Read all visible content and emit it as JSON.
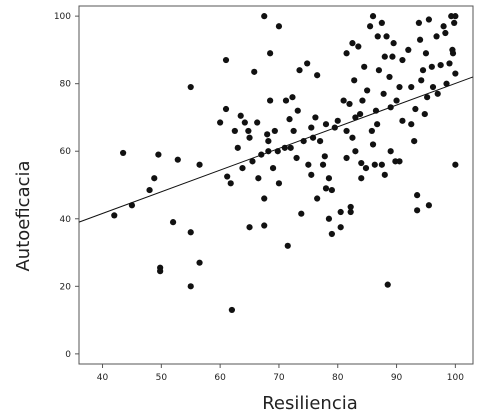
{
  "chart_data": {
    "type": "scatter",
    "xlabel": "Resiliencia",
    "ylabel": "Autoeficacia",
    "xlim": [
      36,
      103
    ],
    "ylim": [
      -3,
      103
    ],
    "xticks": [
      40,
      50,
      60,
      70,
      80,
      90,
      100
    ],
    "yticks": [
      0,
      20,
      40,
      60,
      80,
      100
    ],
    "grid": false,
    "fit_line": {
      "kind": "linear",
      "x": [
        36,
        103
      ],
      "y": [
        39,
        82
      ]
    },
    "points": [
      {
        "x": 42,
        "y": 41
      },
      {
        "x": 43.5,
        "y": 59.5
      },
      {
        "x": 45,
        "y": 44
      },
      {
        "x": 48,
        "y": 48.5
      },
      {
        "x": 48.8,
        "y": 52
      },
      {
        "x": 49.5,
        "y": 59
      },
      {
        "x": 49.8,
        "y": 25.5
      },
      {
        "x": 49.8,
        "y": 24.5
      },
      {
        "x": 52,
        "y": 39
      },
      {
        "x": 52.8,
        "y": 57.5
      },
      {
        "x": 55,
        "y": 79
      },
      {
        "x": 55,
        "y": 36
      },
      {
        "x": 55,
        "y": 20
      },
      {
        "x": 56.5,
        "y": 56
      },
      {
        "x": 56.5,
        "y": 27
      },
      {
        "x": 60,
        "y": 68.5
      },
      {
        "x": 61,
        "y": 87
      },
      {
        "x": 61,
        "y": 72.5
      },
      {
        "x": 61.2,
        "y": 52.5
      },
      {
        "x": 61.8,
        "y": 50.5
      },
      {
        "x": 62,
        "y": 13
      },
      {
        "x": 62.5,
        "y": 66
      },
      {
        "x": 63,
        "y": 61
      },
      {
        "x": 63.5,
        "y": 70.5
      },
      {
        "x": 63.8,
        "y": 55
      },
      {
        "x": 64.2,
        "y": 68.5
      },
      {
        "x": 64.8,
        "y": 66
      },
      {
        "x": 65,
        "y": 64
      },
      {
        "x": 65,
        "y": 37.5
      },
      {
        "x": 65.5,
        "y": 57
      },
      {
        "x": 65.8,
        "y": 83.5
      },
      {
        "x": 66.3,
        "y": 68.5
      },
      {
        "x": 66.5,
        "y": 52
      },
      {
        "x": 67,
        "y": 59
      },
      {
        "x": 67.5,
        "y": 100
      },
      {
        "x": 67.5,
        "y": 46
      },
      {
        "x": 67.5,
        "y": 38
      },
      {
        "x": 68,
        "y": 65
      },
      {
        "x": 68.2,
        "y": 63
      },
      {
        "x": 68.2,
        "y": 60
      },
      {
        "x": 68.5,
        "y": 75
      },
      {
        "x": 68.5,
        "y": 89
      },
      {
        "x": 69,
        "y": 55
      },
      {
        "x": 69.3,
        "y": 66
      },
      {
        "x": 69.8,
        "y": 60
      },
      {
        "x": 70,
        "y": 97
      },
      {
        "x": 70,
        "y": 50.5
      },
      {
        "x": 71,
        "y": 61
      },
      {
        "x": 71.2,
        "y": 75
      },
      {
        "x": 71.5,
        "y": 32
      },
      {
        "x": 71.8,
        "y": 69.5
      },
      {
        "x": 72,
        "y": 61
      },
      {
        "x": 72.3,
        "y": 76
      },
      {
        "x": 72.5,
        "y": 66
      },
      {
        "x": 73,
        "y": 58
      },
      {
        "x": 73.2,
        "y": 72
      },
      {
        "x": 73.5,
        "y": 84
      },
      {
        "x": 73.8,
        "y": 41.5
      },
      {
        "x": 74.2,
        "y": 63
      },
      {
        "x": 74.8,
        "y": 86
      },
      {
        "x": 75,
        "y": 56
      },
      {
        "x": 75.5,
        "y": 67
      },
      {
        "x": 75.5,
        "y": 53
      },
      {
        "x": 75.8,
        "y": 64
      },
      {
        "x": 76.2,
        "y": 70
      },
      {
        "x": 76.5,
        "y": 82.5
      },
      {
        "x": 76.5,
        "y": 46
      },
      {
        "x": 77,
        "y": 63
      },
      {
        "x": 77.5,
        "y": 56
      },
      {
        "x": 77.8,
        "y": 58.5
      },
      {
        "x": 78,
        "y": 68
      },
      {
        "x": 78,
        "y": 49
      },
      {
        "x": 78.5,
        "y": 52
      },
      {
        "x": 78.5,
        "y": 40
      },
      {
        "x": 79,
        "y": 48.5
      },
      {
        "x": 79,
        "y": 35.5
      },
      {
        "x": 79.5,
        "y": 67
      },
      {
        "x": 80,
        "y": 69
      },
      {
        "x": 80.5,
        "y": 42
      },
      {
        "x": 80.5,
        "y": 37.5
      },
      {
        "x": 81,
        "y": 75
      },
      {
        "x": 81.5,
        "y": 66
      },
      {
        "x": 81.5,
        "y": 89
      },
      {
        "x": 81.5,
        "y": 58
      },
      {
        "x": 82,
        "y": 74
      },
      {
        "x": 82.2,
        "y": 43.5
      },
      {
        "x": 82.2,
        "y": 42
      },
      {
        "x": 82.5,
        "y": 64
      },
      {
        "x": 82.5,
        "y": 92
      },
      {
        "x": 82.8,
        "y": 81
      },
      {
        "x": 83,
        "y": 70
      },
      {
        "x": 83,
        "y": 60
      },
      {
        "x": 83.5,
        "y": 91
      },
      {
        "x": 83.8,
        "y": 71
      },
      {
        "x": 84,
        "y": 56.5
      },
      {
        "x": 84,
        "y": 52
      },
      {
        "x": 84.2,
        "y": 75
      },
      {
        "x": 84.5,
        "y": 85
      },
      {
        "x": 84.8,
        "y": 55
      },
      {
        "x": 85,
        "y": 78
      },
      {
        "x": 85.5,
        "y": 97
      },
      {
        "x": 85.8,
        "y": 66
      },
      {
        "x": 86,
        "y": 62
      },
      {
        "x": 86,
        "y": 100
      },
      {
        "x": 86.3,
        "y": 56
      },
      {
        "x": 86.5,
        "y": 72
      },
      {
        "x": 86.7,
        "y": 68
      },
      {
        "x": 86.8,
        "y": 94
      },
      {
        "x": 87,
        "y": 84
      },
      {
        "x": 87.5,
        "y": 98
      },
      {
        "x": 87.5,
        "y": 56
      },
      {
        "x": 87.8,
        "y": 77
      },
      {
        "x": 88,
        "y": 53
      },
      {
        "x": 88,
        "y": 88
      },
      {
        "x": 88.3,
        "y": 94
      },
      {
        "x": 88.5,
        "y": 20.5
      },
      {
        "x": 88.8,
        "y": 82
      },
      {
        "x": 89,
        "y": 73
      },
      {
        "x": 89,
        "y": 60
      },
      {
        "x": 89.3,
        "y": 88
      },
      {
        "x": 89.5,
        "y": 92
      },
      {
        "x": 89.8,
        "y": 57
      },
      {
        "x": 90,
        "y": 75
      },
      {
        "x": 90.5,
        "y": 79
      },
      {
        "x": 90.5,
        "y": 57
      },
      {
        "x": 91,
        "y": 69
      },
      {
        "x": 91,
        "y": 87
      },
      {
        "x": 92,
        "y": 90
      },
      {
        "x": 92.5,
        "y": 79
      },
      {
        "x": 92.5,
        "y": 68
      },
      {
        "x": 93,
        "y": 63
      },
      {
        "x": 93.2,
        "y": 72.5
      },
      {
        "x": 93.5,
        "y": 47
      },
      {
        "x": 93.5,
        "y": 42.5
      },
      {
        "x": 93.8,
        "y": 98
      },
      {
        "x": 94,
        "y": 93
      },
      {
        "x": 94.2,
        "y": 81
      },
      {
        "x": 94.5,
        "y": 84
      },
      {
        "x": 94.8,
        "y": 71
      },
      {
        "x": 95,
        "y": 89
      },
      {
        "x": 95.2,
        "y": 76
      },
      {
        "x": 95.5,
        "y": 44
      },
      {
        "x": 95.5,
        "y": 99
      },
      {
        "x": 96,
        "y": 85
      },
      {
        "x": 96.2,
        "y": 79
      },
      {
        "x": 96.8,
        "y": 94
      },
      {
        "x": 97,
        "y": 77
      },
      {
        "x": 97.5,
        "y": 85.5
      },
      {
        "x": 98,
        "y": 97
      },
      {
        "x": 98.3,
        "y": 95
      },
      {
        "x": 98.5,
        "y": 80
      },
      {
        "x": 99,
        "y": 86
      },
      {
        "x": 99.3,
        "y": 100
      },
      {
        "x": 99.5,
        "y": 90
      },
      {
        "x": 99.6,
        "y": 89
      },
      {
        "x": 99.8,
        "y": 98
      },
      {
        "x": 100,
        "y": 100
      },
      {
        "x": 100,
        "y": 83
      },
      {
        "x": 100,
        "y": 56
      }
    ]
  }
}
